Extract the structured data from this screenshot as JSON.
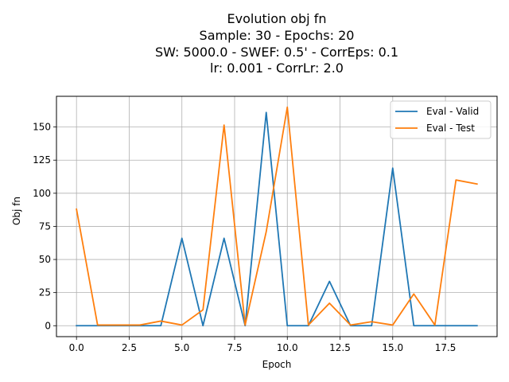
{
  "chart_data": {
    "type": "line",
    "title": [
      "Evolution obj fn",
      "Sample: 30 - Epochs: 20",
      "SW: 5000.0 - SWEF: 0.5' - CorrEps: 0.1",
      "lr: 0.001 - CorrLr: 2.0"
    ],
    "xlabel": "Epoch",
    "ylabel": "Obj fn",
    "xlim": [
      -0.95,
      19.95
    ],
    "ylim": [
      -8.25,
      173.2
    ],
    "xticks": [
      0.0,
      2.5,
      5.0,
      7.5,
      10.0,
      12.5,
      15.0,
      17.5
    ],
    "xtick_labels": [
      "0.0",
      "2.5",
      "5.0",
      "7.5",
      "10.0",
      "12.5",
      "15.0",
      "17.5"
    ],
    "yticks": [
      0,
      25,
      50,
      75,
      100,
      125,
      150
    ],
    "ytick_labels": [
      "0",
      "25",
      "50",
      "75",
      "100",
      "125",
      "150"
    ],
    "grid": true,
    "legend_position": "top-right",
    "x": [
      0,
      1,
      2,
      3,
      4,
      5,
      6,
      7,
      8,
      9,
      10,
      11,
      12,
      13,
      14,
      15,
      16,
      17,
      18,
      19
    ],
    "series": [
      {
        "name": "Eval - Valid",
        "color": "#1f77b4",
        "values": [
          0,
          0,
          0,
          0,
          0,
          66,
          0,
          66,
          0,
          161,
          0,
          0,
          33.5,
          0,
          0,
          119,
          0,
          0,
          0,
          0
        ]
      },
      {
        "name": "Eval - Test",
        "color": "#ff7f0e",
        "values": [
          88,
          0.5,
          0.5,
          0.5,
          3.5,
          0.5,
          12,
          151.5,
          0.5,
          71,
          165,
          0.5,
          17,
          0.5,
          3,
          0.5,
          24,
          0.5,
          110,
          107
        ]
      }
    ]
  }
}
